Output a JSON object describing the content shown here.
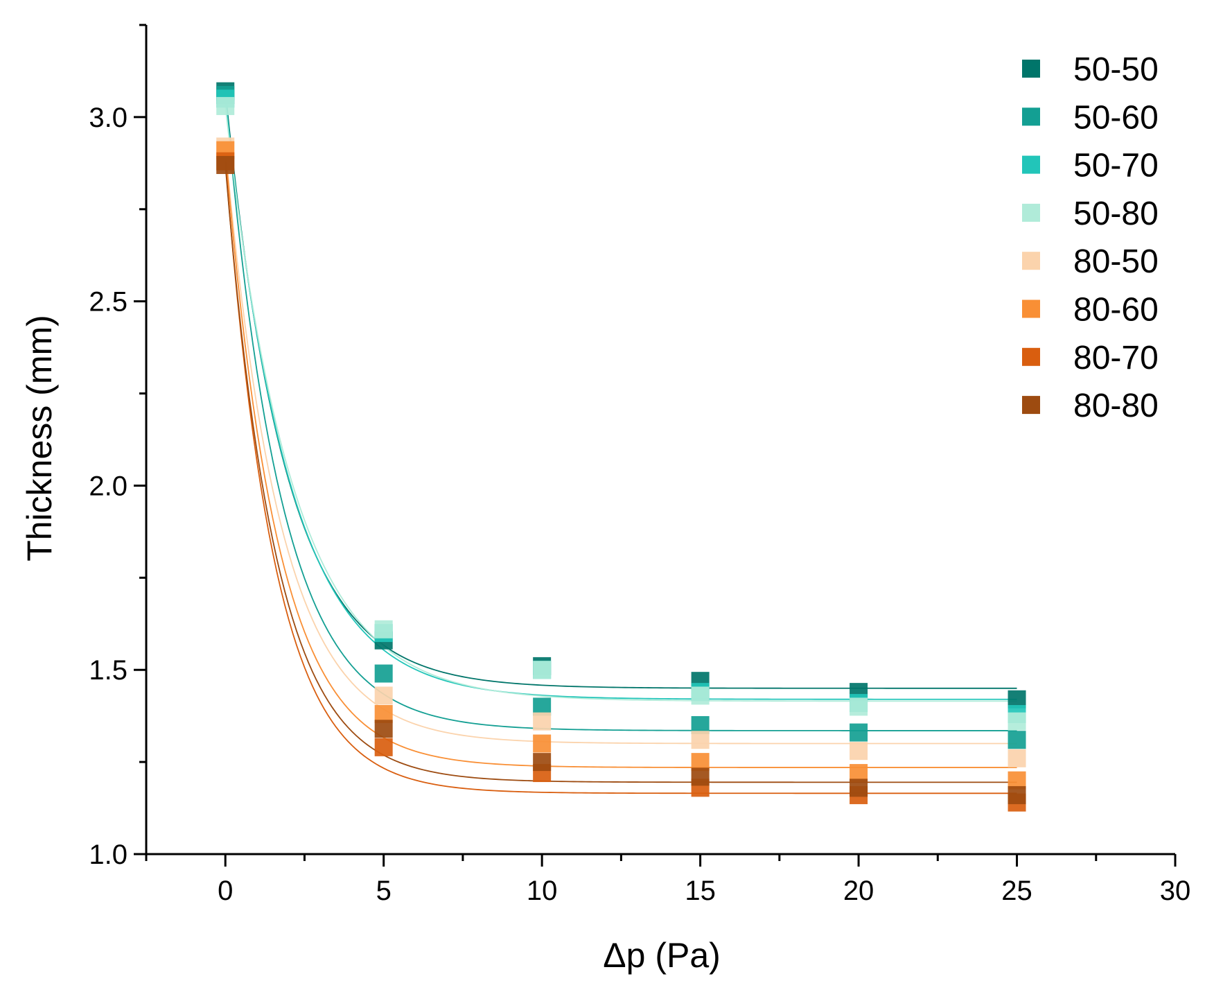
{
  "chart_data": {
    "type": "scatter",
    "title": "",
    "xlabel": "Δp (Pa)",
    "ylabel": "Thickness  (mm)",
    "xlim": [
      -2.5,
      30
    ],
    "ylim": [
      1.0,
      3.25
    ],
    "xticks": [
      0,
      5,
      10,
      15,
      20,
      25,
      30
    ],
    "xtick_labels": [
      "0",
      "5",
      "10",
      "15",
      "20",
      "25",
      "30"
    ],
    "yticks": [
      1.0,
      1.5,
      2.0,
      2.5,
      3.0
    ],
    "ytick_labels": [
      "1.0",
      "1.5",
      "2.0",
      "2.5",
      "3.0"
    ],
    "grid": false,
    "legend_position": "top-right",
    "x": [
      0,
      5,
      10,
      15,
      20,
      25
    ],
    "fit": "exponential decay",
    "series": [
      {
        "name": "50-50",
        "color": "#00756a",
        "values": [
          3.07,
          1.58,
          1.51,
          1.47,
          1.44,
          1.42
        ],
        "fit_params": {
          "y0": 1.45,
          "A": 1.62,
          "t": 1.9
        }
      },
      {
        "name": "50-60",
        "color": "#139f93",
        "values": [
          3.06,
          1.49,
          1.4,
          1.35,
          1.33,
          1.31
        ],
        "fit_params": {
          "y0": 1.335,
          "A": 1.725,
          "t": 1.75
        }
      },
      {
        "name": "50-70",
        "color": "#22c5b9",
        "values": [
          3.05,
          1.6,
          1.5,
          1.44,
          1.41,
          1.38
        ],
        "fit_params": {
          "y0": 1.42,
          "A": 1.63,
          "t": 2.0
        }
      },
      {
        "name": "50-80",
        "color": "#b0ebd9",
        "values": [
          3.03,
          1.61,
          1.5,
          1.43,
          1.4,
          1.36
        ],
        "fit_params": {
          "y0": 1.415,
          "A": 1.615,
          "t": 2.1
        }
      },
      {
        "name": "80-50",
        "color": "#fbd3ac",
        "values": [
          2.92,
          1.43,
          1.36,
          1.31,
          1.28,
          1.26
        ],
        "fit_params": {
          "y0": 1.3,
          "A": 1.62,
          "t": 1.75
        }
      },
      {
        "name": "80-60",
        "color": "#f98f35",
        "values": [
          2.91,
          1.38,
          1.3,
          1.25,
          1.22,
          1.2
        ],
        "fit_params": {
          "y0": 1.235,
          "A": 1.675,
          "t": 1.65
        }
      },
      {
        "name": "80-70",
        "color": "#d95e0f",
        "values": [
          2.88,
          1.29,
          1.22,
          1.18,
          1.16,
          1.14
        ],
        "fit_params": {
          "y0": 1.165,
          "A": 1.715,
          "t": 1.55
        }
      },
      {
        "name": "80-80",
        "color": "#9d4b10",
        "values": [
          2.87,
          1.34,
          1.25,
          1.21,
          1.18,
          1.16
        ],
        "fit_params": {
          "y0": 1.195,
          "A": 1.675,
          "t": 1.6
        }
      }
    ]
  }
}
